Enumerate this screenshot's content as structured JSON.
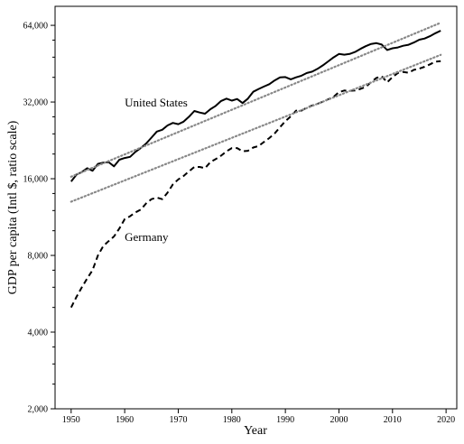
{
  "chart_data": {
    "type": "line",
    "xlabel": "Year",
    "ylabel": "GDP per capita (Intl $, ratio scale)",
    "xlim": [
      1947,
      2022
    ],
    "ylim": [
      2000,
      76000
    ],
    "yscale": "log2",
    "xticks": [
      1950,
      1960,
      1970,
      1980,
      1990,
      2000,
      2010,
      2020
    ],
    "yticks": [
      2000,
      4000,
      8000,
      16000,
      32000,
      64000
    ],
    "ytick_labels": [
      "2,000",
      "4,000",
      "8,000",
      "16,000",
      "32,000",
      "64,000"
    ],
    "minor_ytick_count_per_doubling": 3,
    "grid": false,
    "legend": "none",
    "series": [
      {
        "name": "United States",
        "style": "solid",
        "color": "#000000",
        "x": [
          1950,
          1951,
          1952,
          1953,
          1954,
          1955,
          1956,
          1957,
          1958,
          1959,
          1960,
          1961,
          1962,
          1963,
          1964,
          1965,
          1966,
          1967,
          1968,
          1969,
          1970,
          1971,
          1972,
          1973,
          1974,
          1975,
          1976,
          1977,
          1978,
          1979,
          1980,
          1981,
          1982,
          1983,
          1984,
          1985,
          1986,
          1987,
          1988,
          1989,
          1990,
          1991,
          1992,
          1993,
          1994,
          1995,
          1996,
          1997,
          1998,
          1999,
          2000,
          2001,
          2002,
          2003,
          2004,
          2005,
          2006,
          2007,
          2008,
          2009,
          2010,
          2011,
          2012,
          2013,
          2014,
          2015,
          2016,
          2017,
          2018,
          2019
        ],
        "y": [
          15600,
          16600,
          17000,
          17600,
          17200,
          18300,
          18500,
          18600,
          17900,
          19000,
          19300,
          19500,
          20400,
          21100,
          22000,
          23200,
          24500,
          24900,
          25900,
          26500,
          26200,
          26800,
          28000,
          29500,
          29100,
          28800,
          30000,
          30900,
          32300,
          33000,
          32400,
          32900,
          31700,
          33000,
          35100,
          36000,
          36800,
          37600,
          38900,
          40000,
          40100,
          39300,
          40000,
          40600,
          41600,
          42100,
          43200,
          44600,
          46200,
          47900,
          49400,
          49100,
          49400,
          50300,
          51700,
          53000,
          54100,
          54500,
          53800,
          51200,
          52000,
          52400,
          53200,
          53700,
          54800,
          56200,
          56800,
          58000,
          59600,
          61000
        ]
      },
      {
        "name": "Germany",
        "style": "dashed",
        "color": "#000000",
        "x": [
          1950,
          1951,
          1952,
          1953,
          1954,
          1955,
          1956,
          1957,
          1958,
          1959,
          1960,
          1961,
          1962,
          1963,
          1964,
          1965,
          1966,
          1967,
          1968,
          1969,
          1970,
          1971,
          1972,
          1973,
          1974,
          1975,
          1976,
          1977,
          1978,
          1979,
          1980,
          1981,
          1982,
          1983,
          1984,
          1985,
          1986,
          1987,
          1988,
          1989,
          1990,
          1991,
          1992,
          1993,
          1994,
          1995,
          1996,
          1997,
          1998,
          1999,
          2000,
          2001,
          2002,
          2003,
          2004,
          2005,
          2006,
          2007,
          2008,
          2009,
          2010,
          2011,
          2012,
          2013,
          2014,
          2015,
          2016,
          2017,
          2018,
          2019
        ],
        "y": [
          5000,
          5500,
          6000,
          6500,
          7000,
          8000,
          8700,
          9100,
          9500,
          10200,
          11100,
          11400,
          11800,
          12100,
          12800,
          13300,
          13500,
          13300,
          14100,
          15200,
          15900,
          16400,
          17100,
          17800,
          17800,
          17600,
          18600,
          19100,
          19700,
          20500,
          21100,
          21100,
          20500,
          20600,
          21200,
          21500,
          22300,
          23100,
          24100,
          25500,
          26900,
          28100,
          29600,
          29600,
          30400,
          31000,
          31500,
          32100,
          32800,
          33500,
          35000,
          35500,
          35400,
          35500,
          36000,
          36700,
          38300,
          39800,
          40400,
          38200,
          40100,
          41600,
          42000,
          41700,
          42800,
          43300,
          44000,
          45000,
          46100,
          46300
        ]
      },
      {
        "name": "",
        "style": "dotted",
        "color": "#888888",
        "x": [
          1950,
          2019
        ],
        "y": [
          16300,
          65500
        ]
      },
      {
        "name": "",
        "style": "dotted",
        "color": "#888888",
        "x": [
          1950,
          2019
        ],
        "y": [
          13000,
          49000
        ]
      }
    ],
    "annotations": [
      {
        "text": "United States",
        "x": 1960,
        "y": 30700
      },
      {
        "text": "Germany",
        "x": 1960,
        "y": 9100
      }
    ]
  }
}
